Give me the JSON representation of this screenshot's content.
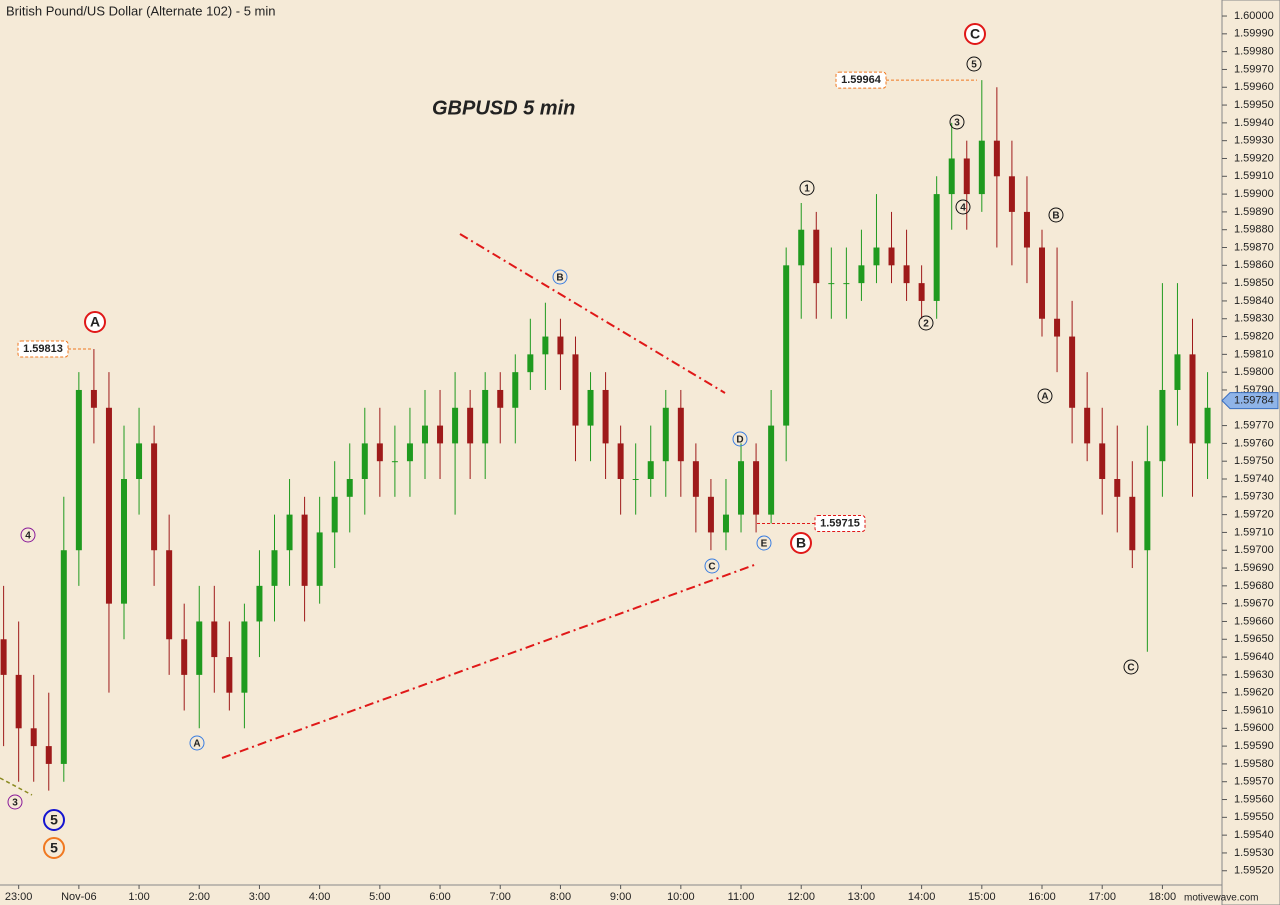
{
  "chart_data": {
    "type": "candlestick",
    "title": "British Pound/US Dollar (Alternate 102) - 5 min",
    "subtitle": "GBPUSD 5 min",
    "watermark": "motivewave.com",
    "up_color": "#1f9a1f",
    "down_color": "#9e1a1a",
    "x": [
      -1.25,
      -1,
      -0.75,
      -0.5,
      -0.25,
      0,
      0.25,
      0.5,
      0.75,
      1,
      1.25,
      1.5,
      1.75,
      2,
      2.25,
      2.5,
      2.75,
      3,
      3.25,
      3.5,
      3.75,
      4,
      4.25,
      4.5,
      4.75,
      5,
      5.25,
      5.5,
      5.75,
      6,
      6.25,
      6.5,
      6.75,
      7,
      7.25,
      7.5,
      7.75,
      8,
      8.25,
      8.5,
      8.75,
      9,
      9.25,
      9.5,
      9.75,
      10,
      10.25,
      10.5,
      10.75,
      11,
      11.25,
      11.5,
      11.75,
      12,
      12.25,
      12.5,
      12.75,
      13,
      13.25,
      13.5,
      13.75,
      14,
      14.25,
      14.5,
      14.75,
      15,
      15.25,
      15.5,
      15.75,
      16,
      16.25,
      16.5,
      16.75,
      17,
      17.25,
      17.5,
      17.75,
      18,
      18.25,
      18.5,
      18.75
    ],
    "open": [
      1.5965,
      1.5963,
      1.596,
      1.5959,
      1.5958,
      1.597,
      1.5979,
      1.5978,
      1.5967,
      1.5974,
      1.5976,
      1.597,
      1.5965,
      1.5963,
      1.5966,
      1.5964,
      1.5962,
      1.5966,
      1.5968,
      1.597,
      1.5972,
      1.5968,
      1.5971,
      1.5973,
      1.5974,
      1.5976,
      1.5975,
      1.5975,
      1.5976,
      1.5977,
      1.5976,
      1.5978,
      1.5976,
      1.5979,
      1.5978,
      1.598,
      1.5981,
      1.5982,
      1.5981,
      1.5977,
      1.5979,
      1.5976,
      1.5974,
      1.5974,
      1.5975,
      1.5978,
      1.5975,
      1.5973,
      1.5971,
      1.5972,
      1.5975,
      1.5972,
      1.5977,
      1.5986,
      1.5988,
      1.5985,
      1.5985,
      1.5985,
      1.5986,
      1.5987,
      1.5986,
      1.5985,
      1.5984,
      1.599,
      1.5992,
      1.599,
      1.5993,
      1.5991,
      1.5989,
      1.5987,
      1.5983,
      1.5982,
      1.5978,
      1.5976,
      1.5974,
      1.5973,
      1.597,
      1.5975,
      1.5979,
      1.5981,
      1.5976
    ],
    "high": [
      1.5968,
      1.5966,
      1.5963,
      1.5962,
      1.5973,
      1.598,
      1.59813,
      1.598,
      1.5977,
      1.5978,
      1.5977,
      1.5972,
      1.5967,
      1.5968,
      1.5968,
      1.5966,
      1.5967,
      1.597,
      1.5972,
      1.5974,
      1.5973,
      1.5973,
      1.5975,
      1.5976,
      1.5978,
      1.5978,
      1.5977,
      1.5978,
      1.5979,
      1.5979,
      1.598,
      1.5979,
      1.598,
      1.598,
      1.5981,
      1.5983,
      1.59839,
      1.5983,
      1.5982,
      1.598,
      1.598,
      1.5977,
      1.5976,
      1.5977,
      1.5979,
      1.5979,
      1.5976,
      1.5974,
      1.5974,
      1.5976,
      1.5976,
      1.5979,
      1.5987,
      1.59895,
      1.5989,
      1.5987,
      1.5987,
      1.5988,
      1.599,
      1.5989,
      1.5988,
      1.5986,
      1.5991,
      1.5994,
      1.5993,
      1.59964,
      1.5996,
      1.5993,
      1.5991,
      1.5988,
      1.5987,
      1.5984,
      1.598,
      1.5978,
      1.5977,
      1.5975,
      1.5977,
      1.5985,
      1.5985,
      1.5983,
      1.598
    ],
    "low": [
      1.5959,
      1.5957,
      1.5957,
      1.59565,
      1.5957,
      1.5968,
      1.5976,
      1.5962,
      1.5965,
      1.5972,
      1.5968,
      1.5963,
      1.5961,
      1.596,
      1.5962,
      1.5961,
      1.596,
      1.5964,
      1.5966,
      1.5968,
      1.5966,
      1.5967,
      1.5969,
      1.5971,
      1.5972,
      1.5973,
      1.5973,
      1.5973,
      1.5974,
      1.5974,
      1.5972,
      1.5974,
      1.5974,
      1.5976,
      1.5976,
      1.5979,
      1.5979,
      1.5979,
      1.5975,
      1.5975,
      1.5974,
      1.5972,
      1.5972,
      1.5973,
      1.5973,
      1.5973,
      1.5971,
      1.597,
      1.597,
      1.5971,
      1.5971,
      1.59715,
      1.5975,
      1.5983,
      1.5983,
      1.5983,
      1.5983,
      1.5984,
      1.5985,
      1.5985,
      1.5984,
      1.5983,
      1.5983,
      1.5988,
      1.5988,
      1.5989,
      1.5987,
      1.5986,
      1.5985,
      1.5982,
      1.598,
      1.5976,
      1.5975,
      1.5972,
      1.5971,
      1.5969,
      1.59643,
      1.5973,
      1.5977,
      1.5973,
      1.5974
    ],
    "close": [
      1.5963,
      1.596,
      1.5959,
      1.5958,
      1.597,
      1.5979,
      1.5978,
      1.5967,
      1.5974,
      1.5976,
      1.597,
      1.5965,
      1.5963,
      1.5966,
      1.5964,
      1.5962,
      1.5966,
      1.5968,
      1.597,
      1.5972,
      1.5968,
      1.5971,
      1.5973,
      1.5974,
      1.5976,
      1.5975,
      1.5975,
      1.5976,
      1.5977,
      1.5976,
      1.5978,
      1.5976,
      1.5979,
      1.5978,
      1.598,
      1.5981,
      1.5982,
      1.5981,
      1.5977,
      1.5979,
      1.5976,
      1.5974,
      1.5974,
      1.5975,
      1.5978,
      1.5975,
      1.5973,
      1.5971,
      1.5972,
      1.5975,
      1.5972,
      1.5977,
      1.5986,
      1.5988,
      1.5985,
      1.5985,
      1.5985,
      1.5986,
      1.5987,
      1.5986,
      1.5985,
      1.5984,
      1.599,
      1.5992,
      1.599,
      1.5993,
      1.5991,
      1.5989,
      1.5987,
      1.5983,
      1.5982,
      1.5978,
      1.5976,
      1.5974,
      1.5973,
      1.597,
      1.5975,
      1.5979,
      1.5981,
      1.5976,
      1.5978
    ],
    "xlim": [
      -1.31,
      18.99
    ],
    "ylim": [
      1.59512,
      1.60009
    ],
    "xticks": [
      {
        "value": -1,
        "label": "23:00"
      },
      {
        "value": 0,
        "label": "Nov-06"
      },
      {
        "value": 1,
        "label": "1:00"
      },
      {
        "value": 2,
        "label": "2:00"
      },
      {
        "value": 3,
        "label": "3:00"
      },
      {
        "value": 4,
        "label": "4:00"
      },
      {
        "value": 5,
        "label": "5:00"
      },
      {
        "value": 6,
        "label": "6:00"
      },
      {
        "value": 7,
        "label": "7:00"
      },
      {
        "value": 8,
        "label": "8:00"
      },
      {
        "value": 9,
        "label": "9:00"
      },
      {
        "value": 10,
        "label": "10:00"
      },
      {
        "value": 11,
        "label": "11:00"
      },
      {
        "value": 12,
        "label": "12:00"
      },
      {
        "value": 13,
        "label": "13:00"
      },
      {
        "value": 14,
        "label": "14:00"
      },
      {
        "value": 15,
        "label": "15:00"
      },
      {
        "value": 16,
        "label": "16:00"
      },
      {
        "value": 17,
        "label": "17:00"
      },
      {
        "value": 18,
        "label": "18:00"
      }
    ],
    "yticks": [
      {
        "value": 1.6,
        "label": "1.60000"
      },
      {
        "value": 1.5999,
        "label": "1.59990"
      },
      {
        "value": 1.5998,
        "label": "1.59980"
      },
      {
        "value": 1.5997,
        "label": "1.59970"
      },
      {
        "value": 1.5996,
        "label": "1.59960"
      },
      {
        "value": 1.5995,
        "label": "1.59950"
      },
      {
        "value": 1.5994,
        "label": "1.59940"
      },
      {
        "value": 1.5993,
        "label": "1.59930"
      },
      {
        "value": 1.5992,
        "label": "1.59920"
      },
      {
        "value": 1.5991,
        "label": "1.59910"
      },
      {
        "value": 1.599,
        "label": "1.59900"
      },
      {
        "value": 1.5989,
        "label": "1.59890"
      },
      {
        "value": 1.5988,
        "label": "1.59880"
      },
      {
        "value": 1.5987,
        "label": "1.59870"
      },
      {
        "value": 1.5986,
        "label": "1.59860"
      },
      {
        "value": 1.5985,
        "label": "1.59850"
      },
      {
        "value": 1.5984,
        "label": "1.59840"
      },
      {
        "value": 1.5983,
        "label": "1.59830"
      },
      {
        "value": 1.5982,
        "label": "1.59820"
      },
      {
        "value": 1.5981,
        "label": "1.59810"
      },
      {
        "value": 1.598,
        "label": "1.59800"
      },
      {
        "value": 1.5979,
        "label": "1.59790"
      },
      {
        "value": 1.5977,
        "label": "1.59770"
      },
      {
        "value": 1.5976,
        "label": "1.59760"
      },
      {
        "value": 1.5975,
        "label": "1.59750"
      },
      {
        "value": 1.5974,
        "label": "1.59740"
      },
      {
        "value": 1.5973,
        "label": "1.59730"
      },
      {
        "value": 1.5972,
        "label": "1.59720"
      },
      {
        "value": 1.5971,
        "label": "1.59710"
      },
      {
        "value": 1.597,
        "label": "1.59700"
      },
      {
        "value": 1.5969,
        "label": "1.59690"
      },
      {
        "value": 1.5968,
        "label": "1.59680"
      },
      {
        "value": 1.5967,
        "label": "1.59670"
      },
      {
        "value": 1.5966,
        "label": "1.59660"
      },
      {
        "value": 1.5965,
        "label": "1.59650"
      },
      {
        "value": 1.5964,
        "label": "1.59640"
      },
      {
        "value": 1.5963,
        "label": "1.59630"
      },
      {
        "value": 1.5962,
        "label": "1.59620"
      },
      {
        "value": 1.5961,
        "label": "1.59610"
      },
      {
        "value": 1.596,
        "label": "1.59600"
      },
      {
        "value": 1.5959,
        "label": "1.59590"
      },
      {
        "value": 1.5958,
        "label": "1.59580"
      },
      {
        "value": 1.5957,
        "label": "1.59570"
      },
      {
        "value": 1.5956,
        "label": "1.59560"
      },
      {
        "value": 1.5955,
        "label": "1.59550"
      },
      {
        "value": 1.5954,
        "label": "1.59540"
      },
      {
        "value": 1.5953,
        "label": "1.59530"
      },
      {
        "value": 1.5952,
        "label": "1.59520"
      }
    ],
    "last_price": 1.59784,
    "price_callouts": [
      {
        "value": 1.59813,
        "color": "#f07820"
      },
      {
        "value": 1.59964,
        "color": "#f07820"
      },
      {
        "value": 1.59715,
        "color": "#e01818"
      }
    ],
    "wave_labels": [
      {
        "text": "A",
        "color": "#e01818"
      },
      {
        "text": "B",
        "color": "#e01818"
      },
      {
        "text": "C",
        "color": "#e01818"
      },
      {
        "text": "A",
        "color": "#3a7de0"
      },
      {
        "text": "B",
        "color": "#3a7de0"
      },
      {
        "text": "C",
        "color": "#3a7de0"
      },
      {
        "text": "D",
        "color": "#3a7de0"
      },
      {
        "text": "E",
        "color": "#3a7de0"
      },
      {
        "text": "1",
        "color": "#111111"
      },
      {
        "text": "2",
        "color": "#111111"
      },
      {
        "text": "3",
        "color": "#111111"
      },
      {
        "text": "4",
        "color": "#111111"
      },
      {
        "text": "5",
        "color": "#111111"
      },
      {
        "text": "A",
        "color": "#111111"
      },
      {
        "text": "B",
        "color": "#111111"
      },
      {
        "text": "C",
        "color": "#111111"
      },
      {
        "text": "3",
        "color": "#8a1a9a"
      },
      {
        "text": "4",
        "color": "#8a1a9a"
      },
      {
        "text": "5",
        "color": "#1414d0"
      },
      {
        "text": "5",
        "color": "#f07820"
      }
    ]
  }
}
